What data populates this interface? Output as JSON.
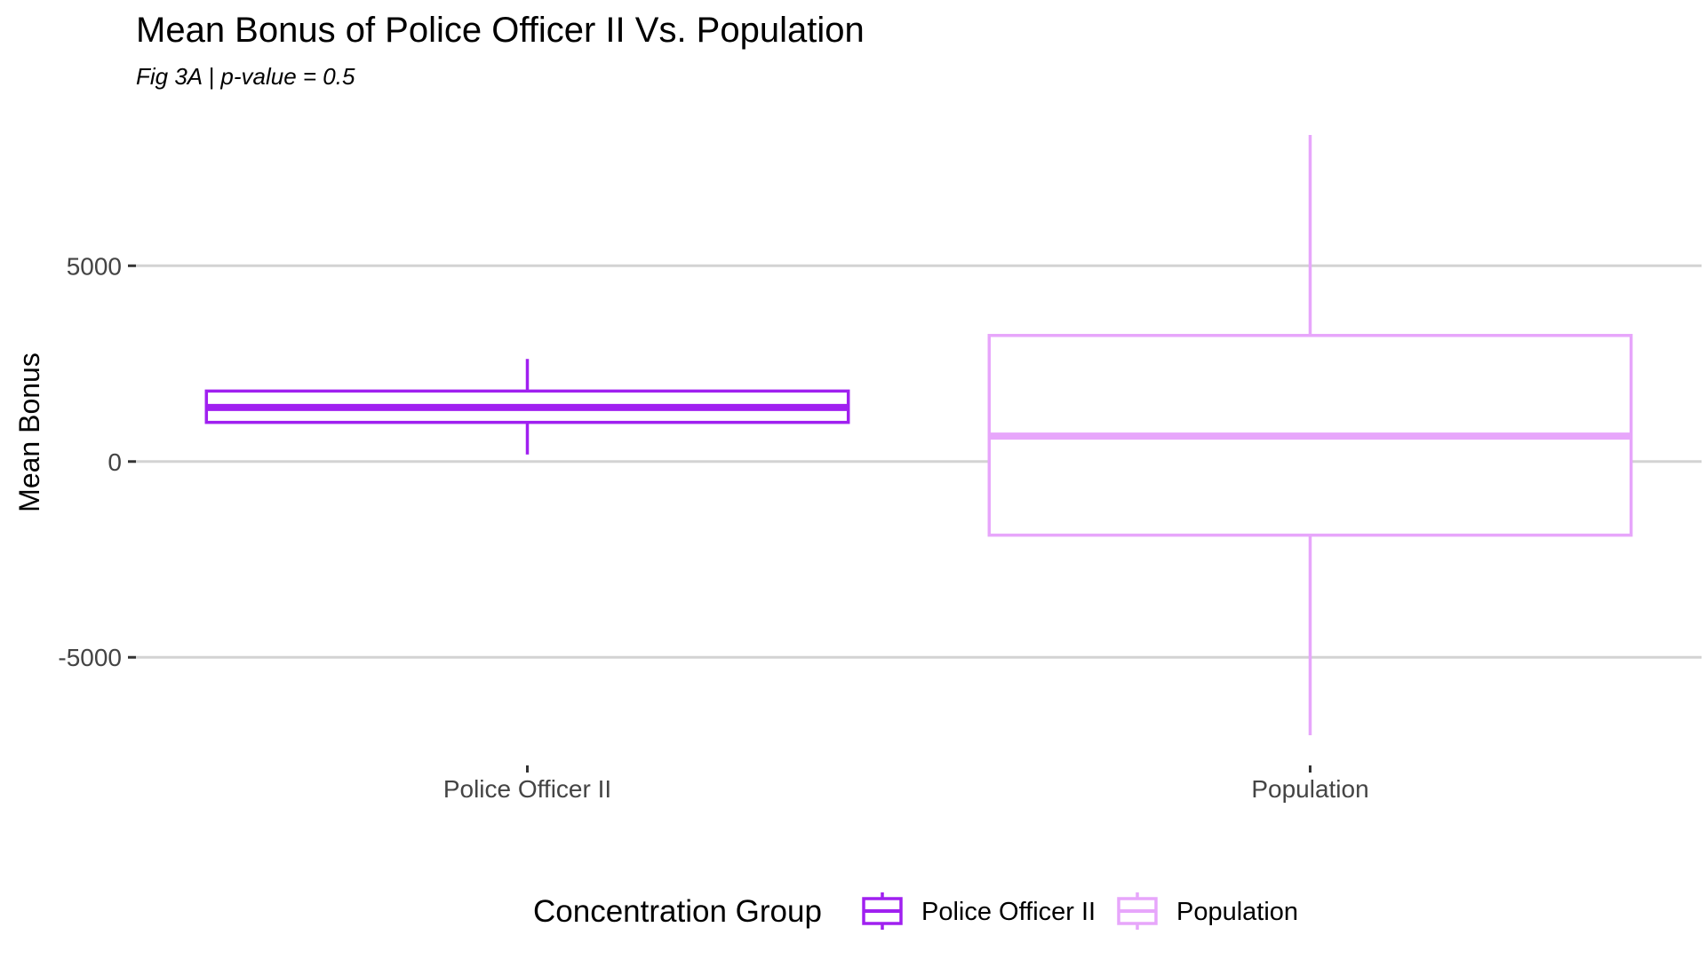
{
  "chart_data": {
    "type": "boxplot",
    "title": "Mean Bonus of Police Officer II Vs. Population",
    "subtitle": "Fig 3A | p-value =  0.5",
    "xlabel": "",
    "ylabel": "Mean Bonus",
    "ylim": [
      -6990,
      8340
    ],
    "y_ticks": [
      -5000,
      0,
      5000
    ],
    "y_tick_labels": [
      "-5000",
      "0",
      "5000"
    ],
    "categories": [
      "Police Officer II",
      "Population"
    ],
    "grid": "horizontal major",
    "legend": {
      "title": "Concentration Group",
      "position": "bottom",
      "entries": [
        "Police Officer II",
        "Population"
      ]
    },
    "series": [
      {
        "name": "Police Officer II",
        "color": "#a020f0",
        "min": 180,
        "q1": 1000,
        "median": 1380,
        "q3": 1800,
        "max": 2620
      },
      {
        "name": "Population",
        "color": "#e7a6fb",
        "min": -6990,
        "q1": -1880,
        "median": 650,
        "q3": 3220,
        "max": 8340
      }
    ]
  }
}
